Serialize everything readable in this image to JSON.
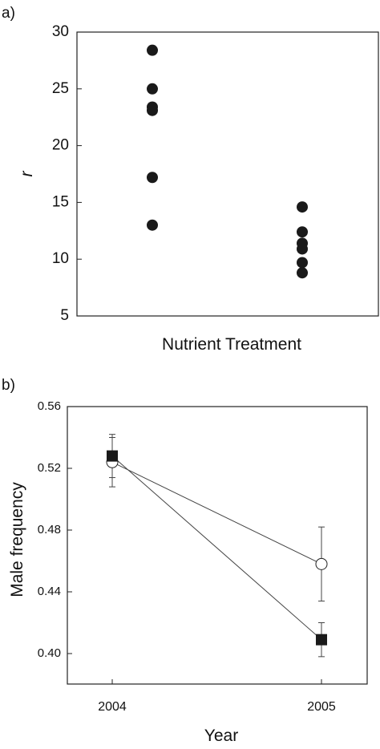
{
  "chart_data": [
    {
      "panel_label": "a)",
      "type": "scatter",
      "xlabel": "Nutrient Treatment",
      "ylabel": "r",
      "ylim": [
        5,
        30
      ],
      "yticks": [
        5,
        10,
        15,
        20,
        25,
        30
      ],
      "grid": false,
      "groups": [
        {
          "values": [
            28.4,
            25.0,
            23.4,
            23.1,
            17.2,
            13.0
          ]
        },
        {
          "values": [
            14.6,
            12.4,
            11.4,
            10.9,
            9.7,
            8.8
          ]
        }
      ]
    },
    {
      "panel_label": "b)",
      "type": "line",
      "xlabel": "Year",
      "ylabel": "Male frequency",
      "categories": [
        "2004",
        "2005"
      ],
      "ylim": [
        0.38,
        0.56
      ],
      "yticks": [
        "0.40",
        "0.44",
        "0.48",
        "0.52",
        "0.56"
      ],
      "grid": false,
      "series": [
        {
          "marker": "open-circle",
          "values": [
            0.524,
            0.458
          ],
          "errors": [
            0.016,
            0.024
          ]
        },
        {
          "marker": "filled-square",
          "values": [
            0.528,
            0.409
          ],
          "errors": [
            0.014,
            0.011
          ]
        }
      ]
    }
  ]
}
